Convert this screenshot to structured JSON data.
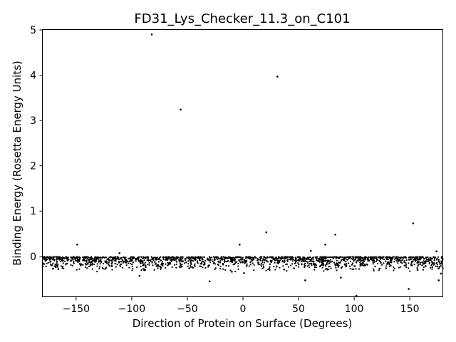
{
  "chart_data": {
    "type": "scatter",
    "title": "FD31_Lys_Checker_11.3_on_C101",
    "xlabel": "Direction of Protein on Surface (Degrees)",
    "ylabel": "Binding Energy (Rosetta Energy Units)",
    "xlim": [
      -180,
      180
    ],
    "ylim": [
      -0.9,
      5
    ],
    "xticks": [
      -150,
      -100,
      -50,
      0,
      50,
      100,
      150
    ],
    "xtick_labels": [
      "−150",
      "−100",
      "−50",
      "0",
      "50",
      "100",
      "150"
    ],
    "yticks": [
      0,
      1,
      2,
      3,
      4,
      5
    ],
    "ytick_labels": [
      "0",
      "1",
      "2",
      "3",
      "4",
      "5"
    ],
    "grid": false,
    "marker_color": "#000000",
    "dense_band": {
      "x_range": [
        -180,
        180
      ],
      "y_range": [
        -0.35,
        -0.01
      ],
      "point_count": 1800
    },
    "points": [
      {
        "x": -82,
        "y": 4.9
      },
      {
        "x": 31,
        "y": 3.97
      },
      {
        "x": -56,
        "y": 3.24
      },
      {
        "x": 153,
        "y": 0.73
      },
      {
        "x": 21,
        "y": 0.53
      },
      {
        "x": 83,
        "y": 0.48
      },
      {
        "x": -149,
        "y": 0.26
      },
      {
        "x": -3,
        "y": 0.26
      },
      {
        "x": 74,
        "y": 0.26
      },
      {
        "x": 61,
        "y": 0.12
      },
      {
        "x": 174,
        "y": 0.11
      },
      {
        "x": -111,
        "y": 0.07
      },
      {
        "x": 102,
        "y": -0.87
      },
      {
        "x": 149,
        "y": -0.72
      },
      {
        "x": -30,
        "y": -0.55
      },
      {
        "x": 56,
        "y": -0.53
      },
      {
        "x": 176,
        "y": -0.53
      },
      {
        "x": 88,
        "y": -0.47
      },
      {
        "x": -93,
        "y": -0.43
      },
      {
        "x": 178,
        "y": -0.38
      },
      {
        "x": 1,
        "y": -0.37
      },
      {
        "x": -10,
        "y": -0.34
      },
      {
        "x": -166,
        "y": -0.28
      },
      {
        "x": -88,
        "y": -0.3
      },
      {
        "x": 37,
        "y": -0.29
      },
      {
        "x": 123,
        "y": -0.27
      },
      {
        "x": 157,
        "y": -0.3
      }
    ]
  }
}
